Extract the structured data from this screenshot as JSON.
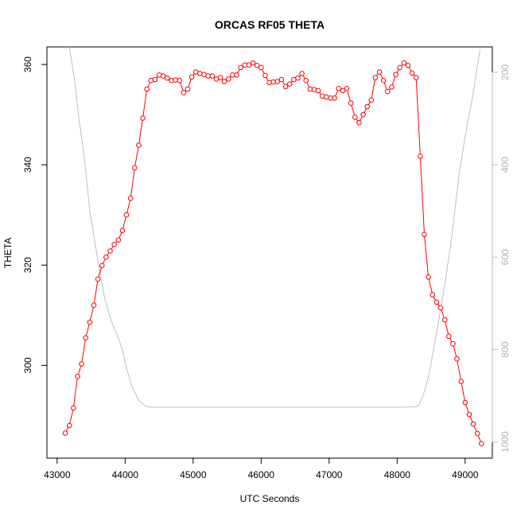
{
  "chart_data": {
    "type": "line",
    "title": "ORCAS RF05 THETA",
    "xlabel": "UTC Seconds",
    "ylabel": "THETA",
    "xlim": [
      42850,
      49400
    ],
    "ylim": [
      281.5,
      363.5
    ],
    "y2lim": [
      1035,
      145
    ],
    "y2_reversed": true,
    "grid": false,
    "x_ticks": [
      "43000",
      "44000",
      "45000",
      "46000",
      "47000",
      "48000",
      "49000"
    ],
    "y_ticks": [
      "300",
      "320",
      "340",
      "360"
    ],
    "y2_ticks": [
      "200",
      "400",
      "600",
      "800",
      "1000"
    ],
    "colors": {
      "theta": "#ff0000",
      "pressure": "#bebebe"
    },
    "series": [
      {
        "axis": "left",
        "x": [
          43120,
          43180,
          43240,
          43300,
          43360,
          43420,
          43480,
          43540,
          43600,
          43660,
          43720,
          43780,
          43840,
          43900,
          43960,
          44020,
          44080,
          44140,
          44200,
          44260,
          44320,
          44380,
          44440,
          44500,
          44560,
          44620,
          44680,
          44740,
          44800,
          44860,
          44920,
          44980,
          45040,
          45100,
          45160,
          45220,
          45280,
          45340,
          45400,
          45460,
          45520,
          45580,
          45640,
          45700,
          45760,
          45820,
          45880,
          45940,
          46000,
          46060,
          46120,
          46180,
          46240,
          46300,
          46360,
          46420,
          46480,
          46540,
          46600,
          46660,
          46720,
          46780,
          46840,
          46900,
          46960,
          47020,
          47080,
          47140,
          47200,
          47260,
          47320,
          47380,
          47440,
          47500,
          47560,
          47620,
          47680,
          47740,
          47800,
          47860,
          47920,
          47980,
          48040,
          48100,
          48160,
          48220,
          48280,
          48340,
          48400,
          48460,
          48520,
          48580,
          48640,
          48700,
          48760,
          48820,
          48880,
          48940,
          49000,
          49060,
          49120,
          49180,
          49240
        ],
        "y": [
          286.5,
          288.0,
          291.5,
          297.8,
          300.3,
          305.5,
          308.6,
          312.0,
          317.2,
          319.9,
          321.6,
          322.8,
          324.1,
          325.0,
          326.9,
          330.0,
          333.3,
          339.4,
          343.9,
          349.3,
          355.1,
          356.8,
          357.0,
          357.9,
          357.7,
          357.3,
          356.8,
          356.9,
          356.8,
          354.4,
          355.1,
          357.5,
          358.5,
          358.2,
          358.0,
          357.7,
          357.7,
          357.1,
          357.4,
          356.6,
          357.1,
          357.9,
          357.9,
          359.4,
          359.9,
          359.9,
          360.3,
          359.8,
          359.4,
          357.8,
          356.4,
          356.5,
          356.6,
          357.0,
          355.6,
          356.1,
          357.0,
          357.3,
          358.2,
          356.8,
          355.1,
          355.0,
          354.8,
          353.7,
          353.5,
          353.3,
          353.3,
          355.2,
          354.8,
          355.2,
          352.3,
          349.5,
          348.4,
          350.0,
          351.6,
          352.9,
          357.4,
          358.5,
          356.8,
          354.6,
          355.5,
          358.0,
          359.4,
          360.3,
          359.8,
          358.3,
          357.4,
          341.7,
          326.1,
          317.6,
          314.1,
          312.6,
          311.5,
          309.1,
          305.8,
          304.3,
          301.3,
          296.8,
          292.6,
          290.2,
          288.3,
          286.4,
          284.4
        ]
      },
      {
        "axis": "right",
        "x": [
          43180,
          43260,
          43320,
          43400,
          43480,
          43580,
          43700,
          43800,
          43900,
          43960,
          44020,
          44100,
          44200,
          44280,
          44330,
          44400,
          45000,
          46000,
          47000,
          48000,
          48280,
          48320,
          48380,
          48460,
          48560,
          48680,
          48800,
          48920,
          49000,
          49100,
          49220
        ],
        "y": [
          145,
          220,
          300,
          385,
          500,
          590,
          690,
          740,
          775,
          800,
          840,
          880,
          910,
          920,
          924,
          925,
          925,
          925,
          925,
          925,
          924,
          920,
          900,
          860,
          780,
          680,
          560,
          410,
          340,
          260,
          150
        ]
      }
    ]
  }
}
